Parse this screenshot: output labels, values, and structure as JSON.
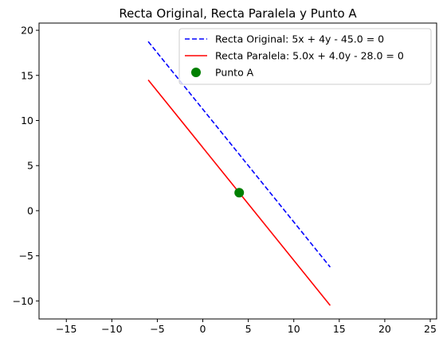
{
  "chart_data": {
    "type": "line",
    "title": "Recta Original, Recta Paralela y Punto A",
    "xlabel": "",
    "ylabel": "",
    "xlim": [
      -18,
      25.7
    ],
    "ylim": [
      -12,
      20.8
    ],
    "xticks": [
      -15,
      -10,
      -5,
      0,
      5,
      10,
      15,
      20,
      25
    ],
    "yticks": [
      -10,
      -5,
      0,
      5,
      10,
      15,
      20
    ],
    "grid": false,
    "legend_position": "top-right",
    "series": [
      {
        "name": "Recta Original: 5x + 4y - 45.0 = 0",
        "kind": "line",
        "style": "dashed",
        "color": "#0000ff",
        "x": [
          -6,
          14
        ],
        "y": [
          18.75,
          -6.25
        ]
      },
      {
        "name": "Recta Paralela: 5.0x + 4.0y - 28.0 = 0",
        "kind": "line",
        "style": "solid",
        "color": "#ff0000",
        "x": [
          -6,
          14
        ],
        "y": [
          14.5,
          -10.5
        ]
      },
      {
        "name": "Punto A",
        "kind": "point",
        "color": "#008000",
        "x": [
          4
        ],
        "y": [
          2
        ]
      }
    ]
  }
}
